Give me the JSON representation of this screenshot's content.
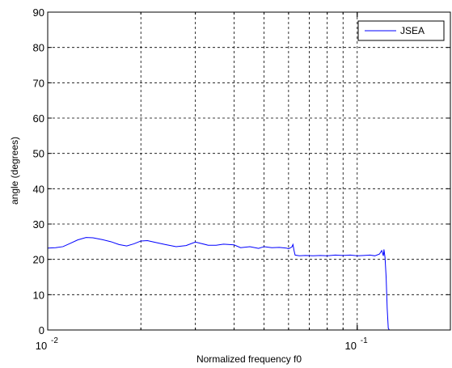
{
  "chart_data": {
    "type": "line",
    "xlabel": "Normalized frequency f0",
    "ylabel": "angle (degrees)",
    "xscale": "log",
    "xlim": [
      0.01,
      0.2
    ],
    "ylim": [
      0,
      90
    ],
    "grid": true,
    "legend": "top-right",
    "x_tick_labels": [
      {
        "value": 0.01,
        "base": "10",
        "exp": "-2"
      },
      {
        "value": 0.1,
        "base": "10",
        "exp": "-1"
      }
    ],
    "y_ticks": [
      0,
      10,
      20,
      30,
      40,
      50,
      60,
      70,
      80,
      90
    ],
    "series": [
      {
        "name": "JSEA",
        "color": "#0000ff",
        "x": [
          0.01,
          0.0106,
          0.0112,
          0.0118,
          0.0125,
          0.0133,
          0.014,
          0.015,
          0.016,
          0.017,
          0.018,
          0.019,
          0.02,
          0.021,
          0.022,
          0.024,
          0.026,
          0.028,
          0.03,
          0.031,
          0.033,
          0.035,
          0.037,
          0.04,
          0.042,
          0.045,
          0.048,
          0.05,
          0.053,
          0.056,
          0.059,
          0.06,
          0.0615,
          0.062,
          0.0625,
          0.063,
          0.065,
          0.068,
          0.072,
          0.076,
          0.08,
          0.085,
          0.09,
          0.095,
          0.1,
          0.105,
          0.11,
          0.114,
          0.118,
          0.12,
          0.1215,
          0.122,
          0.123,
          0.124,
          0.125,
          0.126,
          0.127,
          0.14,
          0.16,
          0.18,
          0.2
        ],
        "y": [
          23.2,
          23.3,
          23.6,
          24.5,
          25.5,
          26.2,
          26.1,
          25.6,
          25.0,
          24.2,
          23.8,
          24.4,
          25.2,
          25.3,
          24.9,
          24.2,
          23.6,
          23.9,
          24.9,
          24.6,
          24.0,
          24.0,
          24.3,
          24.1,
          23.3,
          23.6,
          23.1,
          23.6,
          23.3,
          23.4,
          23.2,
          23.0,
          23.5,
          24.2,
          22.5,
          21.2,
          21.0,
          21.1,
          21.0,
          21.1,
          21.0,
          21.2,
          21.1,
          21.2,
          21.0,
          21.1,
          21.2,
          21.0,
          21.5,
          22.5,
          21.0,
          22.8,
          20.5,
          15.0,
          6.0,
          0.5,
          0.0,
          0.0,
          0.0,
          0.0,
          0.0
        ]
      }
    ]
  }
}
